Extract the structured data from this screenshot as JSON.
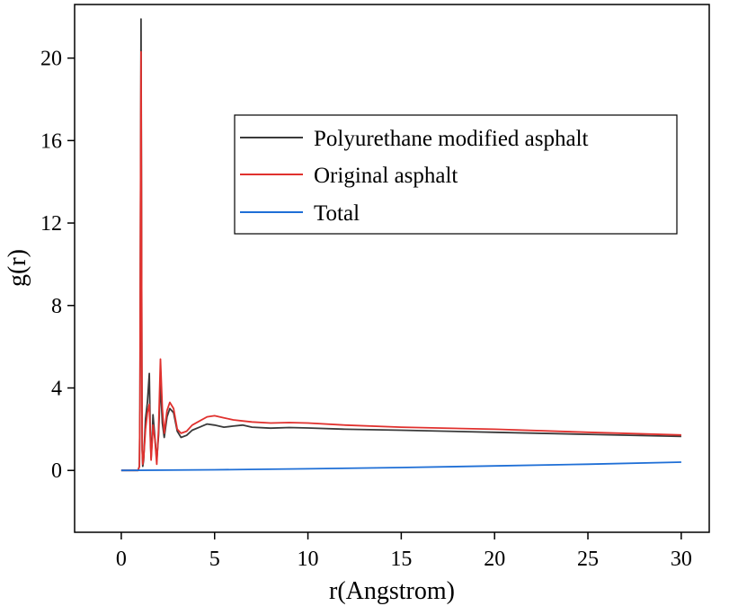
{
  "chart_data": {
    "type": "line",
    "title": "",
    "xlabel": "r(Angstrom)",
    "ylabel": "g(r)",
    "xlim": [
      -2.5,
      31.5
    ],
    "ylim": [
      -3.0,
      22.6
    ],
    "xticks": [
      0,
      5,
      10,
      15,
      20,
      25,
      30
    ],
    "yticks": [
      0,
      4,
      8,
      12,
      16,
      20
    ],
    "xtick_labels": [
      "0",
      "5",
      "10",
      "15",
      "20",
      "25",
      "30"
    ],
    "ytick_labels": [
      "0",
      "4",
      "8",
      "12",
      "16",
      "20"
    ],
    "legend_position": "upper-right",
    "series": [
      {
        "name": "Polyurethane modified asphalt",
        "color": "#3a3a3a",
        "x": [
          0,
          0.9,
          0.97,
          1.0,
          1.03,
          1.06,
          1.08,
          1.1,
          1.12,
          1.15,
          1.2,
          1.3,
          1.4,
          1.5,
          1.55,
          1.6,
          1.65,
          1.7,
          1.8,
          1.9,
          2.0,
          2.1,
          2.2,
          2.3,
          2.45,
          2.6,
          2.8,
          3.0,
          3.2,
          3.5,
          3.8,
          4.2,
          4.6,
          5.0,
          5.5,
          6.0,
          6.5,
          7.0,
          8.0,
          9.0,
          10.0,
          12.0,
          15.0,
          20.0,
          25.0,
          30.0
        ],
        "y": [
          0,
          0,
          0.2,
          3.0,
          12.0,
          21.9,
          15.0,
          5.0,
          1.0,
          0.2,
          0.5,
          2.5,
          3.3,
          4.7,
          2.0,
          0.6,
          1.5,
          2.7,
          1.6,
          0.5,
          1.7,
          4.3,
          2.3,
          1.6,
          2.6,
          3.0,
          2.8,
          1.9,
          1.6,
          1.7,
          1.95,
          2.1,
          2.25,
          2.2,
          2.1,
          2.15,
          2.2,
          2.1,
          2.05,
          2.08,
          2.06,
          2.0,
          1.95,
          1.85,
          1.75,
          1.65
        ]
      },
      {
        "name": "Original asphalt",
        "color": "#e0312e",
        "x": [
          0,
          0.9,
          0.97,
          1.0,
          1.03,
          1.06,
          1.08,
          1.1,
          1.12,
          1.15,
          1.2,
          1.3,
          1.4,
          1.5,
          1.55,
          1.6,
          1.65,
          1.7,
          1.8,
          1.9,
          2.0,
          2.1,
          2.2,
          2.3,
          2.45,
          2.6,
          2.8,
          3.0,
          3.2,
          3.5,
          3.8,
          4.2,
          4.6,
          5.0,
          5.5,
          6.0,
          6.5,
          7.0,
          8.0,
          9.0,
          10.0,
          12.0,
          15.0,
          20.0,
          25.0,
          30.0
        ],
        "y": [
          0,
          0,
          0.2,
          3.2,
          13.0,
          20.3,
          14.0,
          5.5,
          1.0,
          0.3,
          0.6,
          2.0,
          2.8,
          3.2,
          1.7,
          0.5,
          1.3,
          2.2,
          1.5,
          0.3,
          2.0,
          5.4,
          3.0,
          1.8,
          2.9,
          3.3,
          3.0,
          2.0,
          1.8,
          1.9,
          2.2,
          2.4,
          2.6,
          2.65,
          2.55,
          2.45,
          2.4,
          2.35,
          2.3,
          2.32,
          2.3,
          2.2,
          2.1,
          2.0,
          1.85,
          1.72
        ]
      },
      {
        "name": "Total",
        "color": "#1f6fd6",
        "x": [
          0,
          5,
          10,
          15,
          20,
          25,
          30
        ],
        "y": [
          0,
          0.03,
          0.08,
          0.14,
          0.22,
          0.3,
          0.4
        ]
      }
    ]
  }
}
